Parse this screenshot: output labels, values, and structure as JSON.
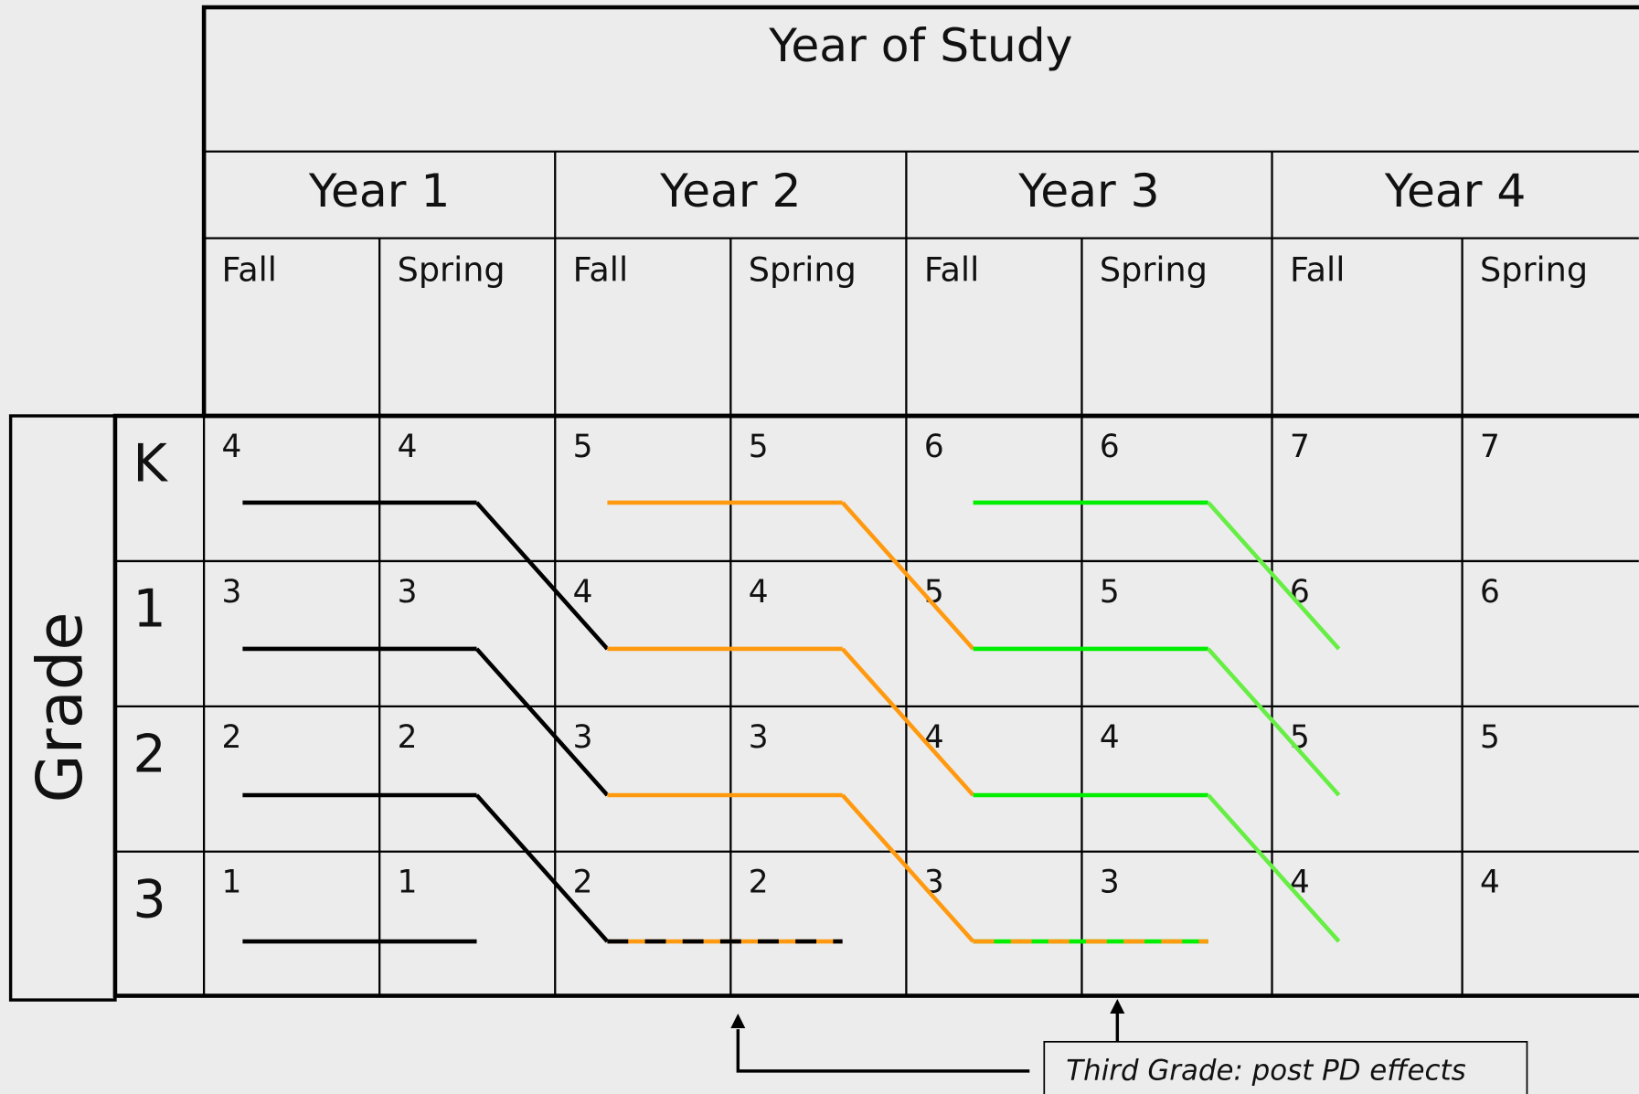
{
  "title": "Year of Study",
  "years": [
    "Year 1",
    "Year 2",
    "Year 3",
    "Year 4"
  ],
  "terms": [
    "Fall",
    "Spring",
    "Fall",
    "Spring",
    "Fall",
    "Spring",
    "Fall",
    "Spring"
  ],
  "row_header": "Grade",
  "grades": [
    "K",
    "1",
    "2",
    "3"
  ],
  "cells": [
    [
      4,
      4,
      5,
      5,
      6,
      6,
      7,
      7
    ],
    [
      3,
      3,
      4,
      4,
      5,
      5,
      6,
      6
    ],
    [
      2,
      2,
      3,
      3,
      4,
      4,
      5,
      5
    ],
    [
      1,
      1,
      2,
      2,
      3,
      3,
      4,
      4
    ]
  ],
  "note": "Third Grade: post PD effects"
}
